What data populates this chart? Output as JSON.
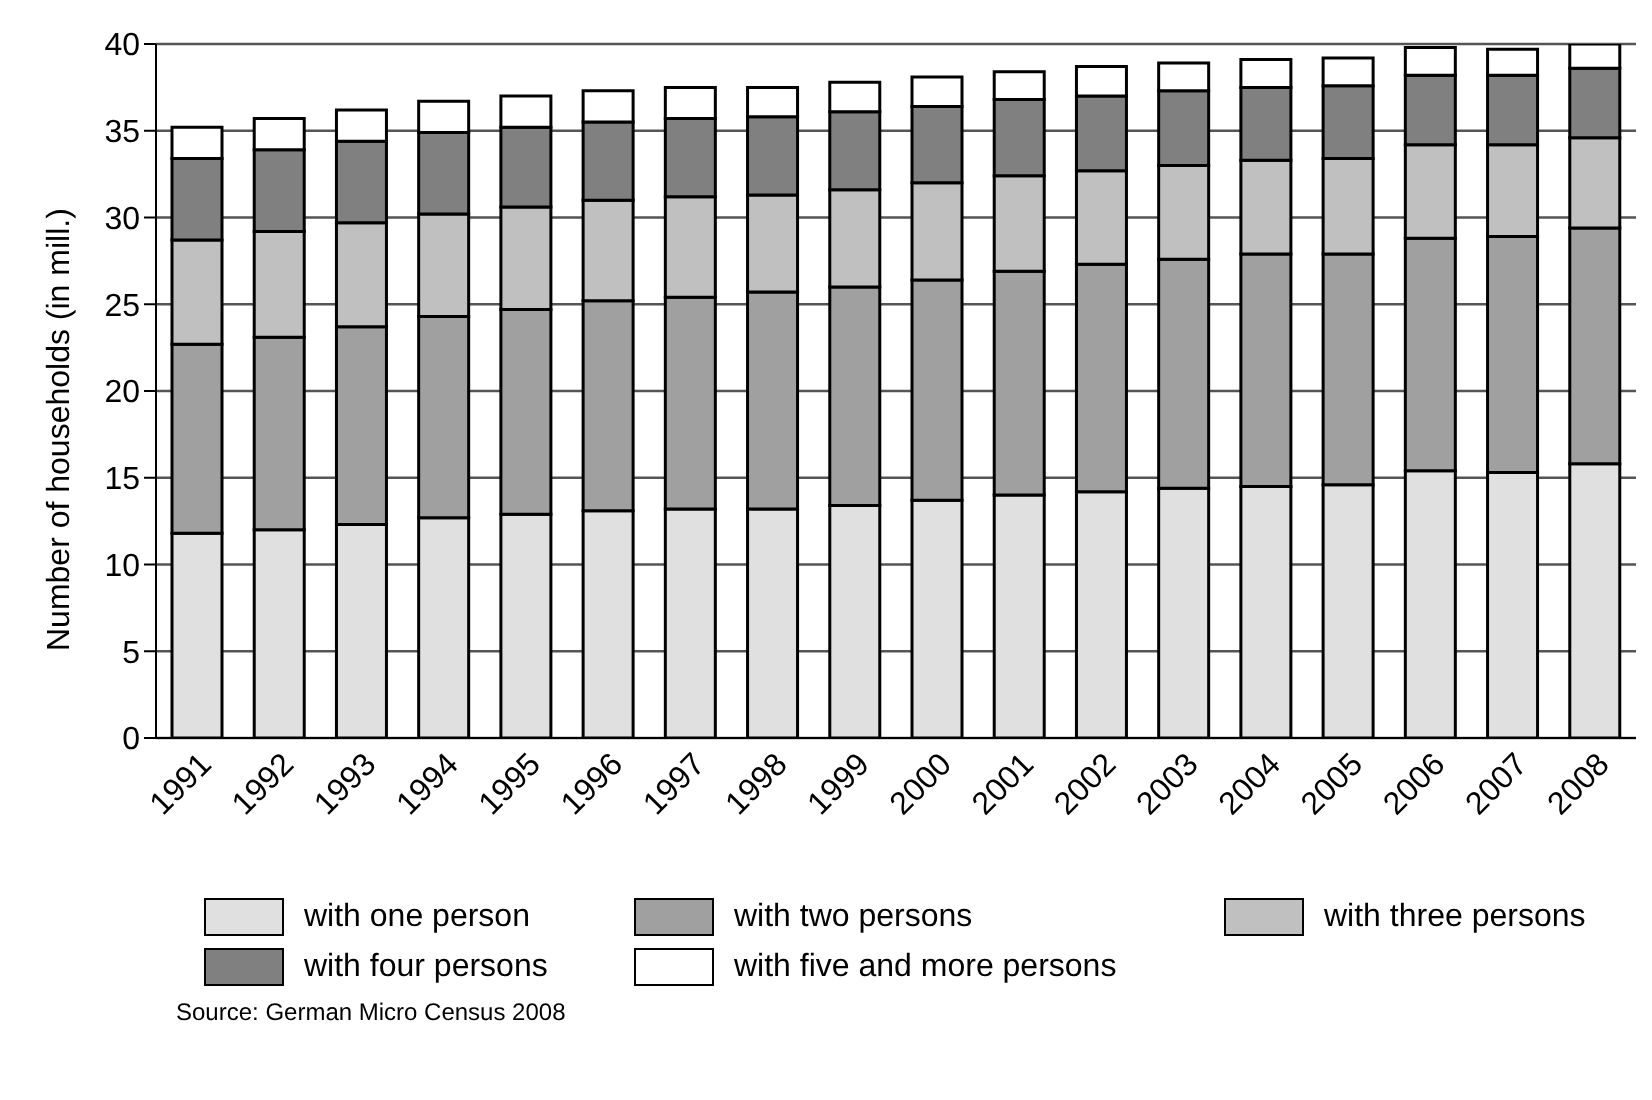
{
  "chart_data": {
    "type": "bar",
    "stacked": true,
    "ylabel": "Number of households (in mill.)",
    "categories": [
      "1991",
      "1992",
      "1993",
      "1994",
      "1995",
      "1996",
      "1997",
      "1998",
      "1999",
      "2000",
      "2001",
      "2002",
      "2003",
      "2004",
      "2005",
      "2006",
      "2007",
      "2008"
    ],
    "series": [
      {
        "name": "with one person",
        "color": "#e0e0e0",
        "values": [
          11.8,
          12.0,
          12.3,
          12.7,
          12.9,
          13.1,
          13.2,
          13.2,
          13.4,
          13.7,
          14.0,
          14.2,
          14.4,
          14.5,
          14.6,
          15.4,
          15.3,
          15.8
        ]
      },
      {
        "name": "with two persons",
        "color": "#a0a0a0",
        "values": [
          10.9,
          11.1,
          11.4,
          11.6,
          11.8,
          12.1,
          12.2,
          12.5,
          12.6,
          12.7,
          12.9,
          13.1,
          13.2,
          13.4,
          13.3,
          13.4,
          13.6,
          13.6
        ]
      },
      {
        "name": "with three persons",
        "color": "#c0c0c0",
        "values": [
          6.0,
          6.1,
          6.0,
          5.9,
          5.9,
          5.8,
          5.8,
          5.6,
          5.6,
          5.6,
          5.5,
          5.4,
          5.4,
          5.4,
          5.5,
          5.4,
          5.3,
          5.2
        ]
      },
      {
        "name": "with four persons",
        "color": "#808080",
        "values": [
          4.7,
          4.7,
          4.7,
          4.7,
          4.6,
          4.5,
          4.5,
          4.5,
          4.5,
          4.4,
          4.4,
          4.3,
          4.3,
          4.2,
          4.2,
          4.0,
          4.0,
          4.0
        ]
      },
      {
        "name": "with five and more persons",
        "color": "#ffffff",
        "values": [
          1.8,
          1.8,
          1.8,
          1.8,
          1.8,
          1.8,
          1.8,
          1.7,
          1.7,
          1.7,
          1.6,
          1.7,
          1.6,
          1.6,
          1.6,
          1.6,
          1.5,
          1.4
        ]
      }
    ],
    "ylim": [
      0,
      40
    ],
    "yticks": [
      0,
      5,
      10,
      15,
      20,
      25,
      30,
      35,
      40
    ],
    "grid": "y",
    "legend": "bottom",
    "annotations": [
      "Source: German Micro Census 2008"
    ]
  }
}
